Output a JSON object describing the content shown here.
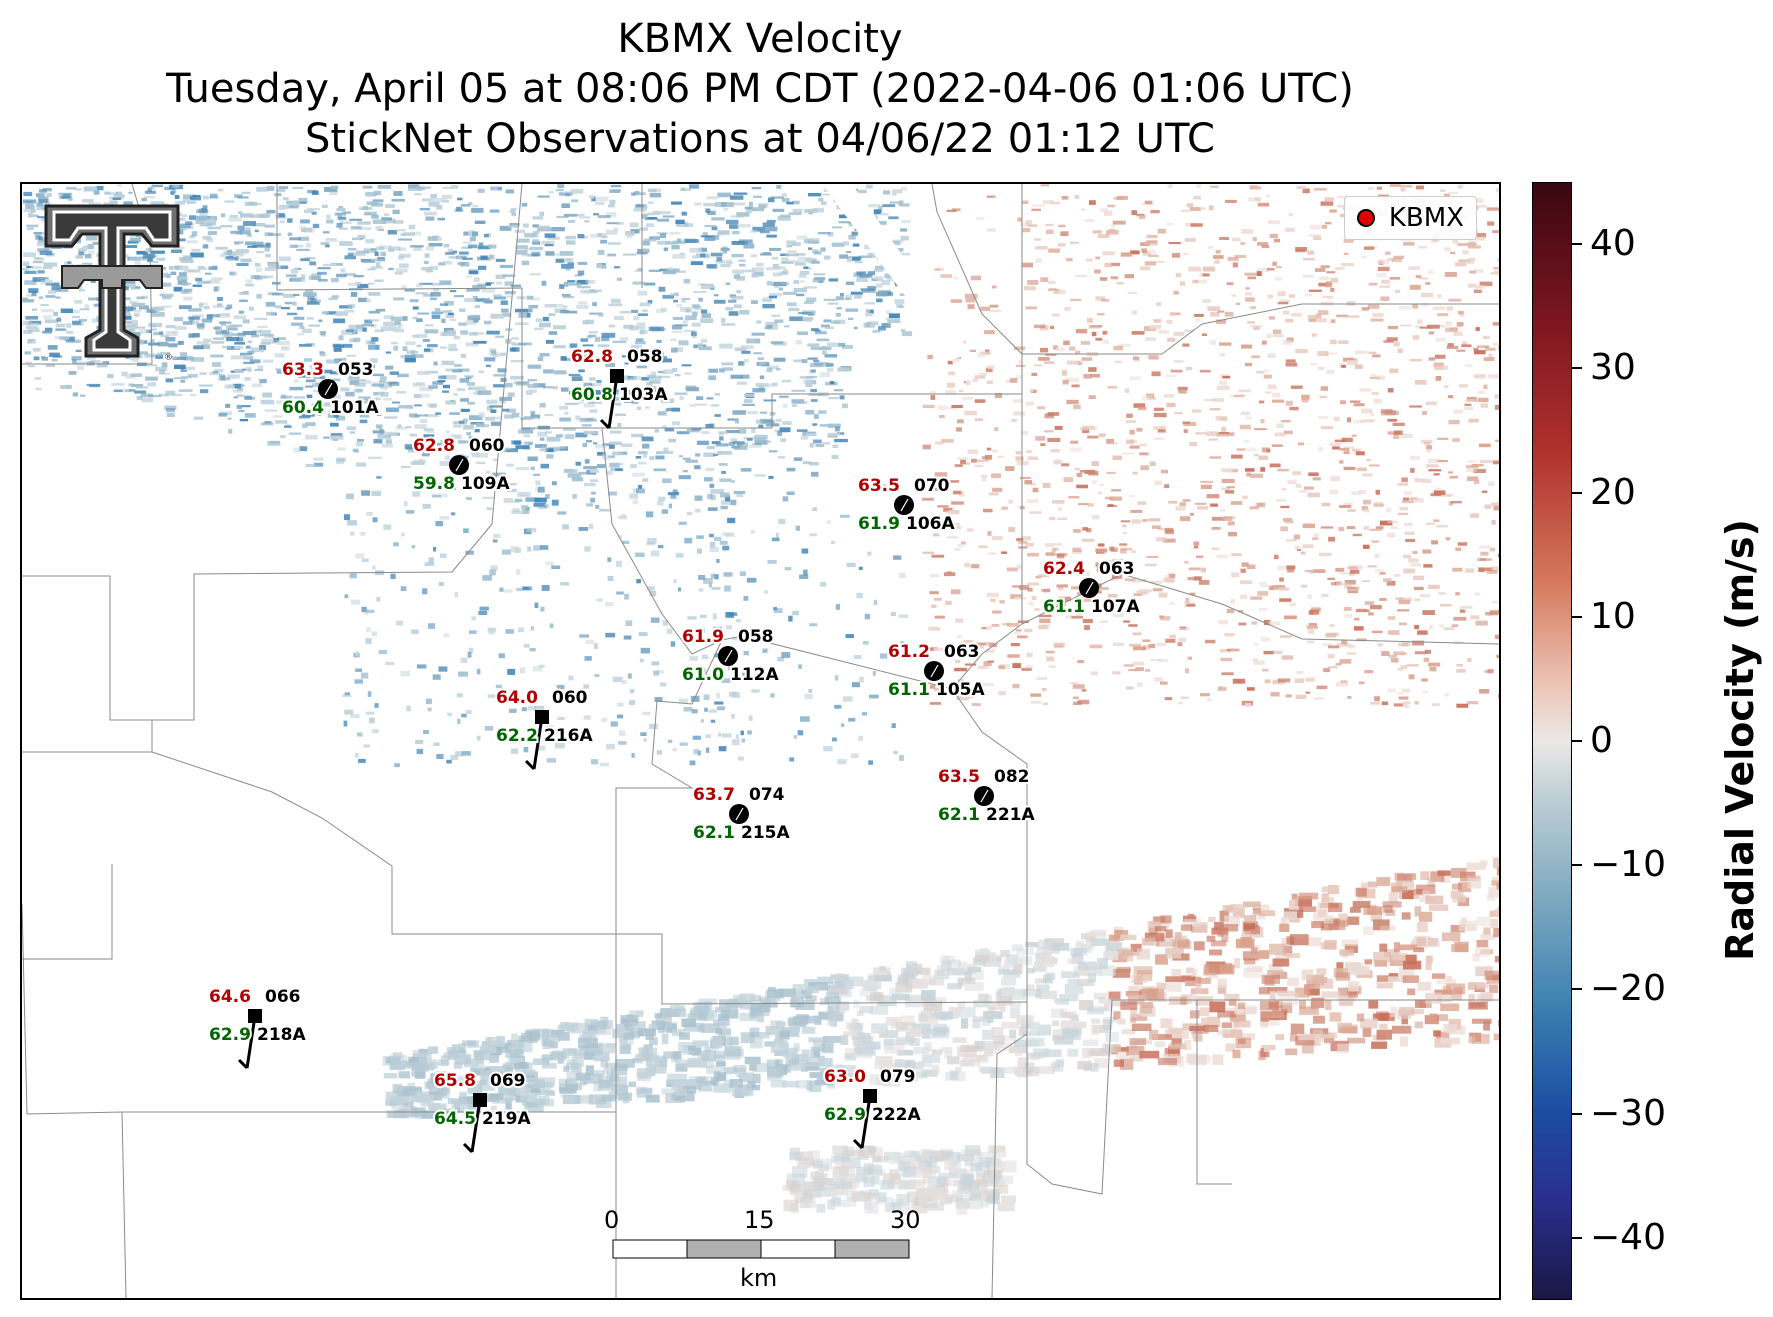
{
  "title": {
    "line1": "KBMX Velocity",
    "line2": "Tuesday, April 05 at 08:06 PM CDT (2022-04-06 01:06 UTC)",
    "line3": "StickNet Observations at 04/06/22 01:12 UTC"
  },
  "legend": {
    "label": "KBMX",
    "marker_color": "#e00000"
  },
  "logo": {
    "name": "texas-tech-double-t-logo"
  },
  "colorbar": {
    "label": "Radial Velocity (m/s)",
    "ticks": [
      "40",
      "30",
      "20",
      "10",
      "0",
      "−10",
      "−20",
      "−30",
      "−40"
    ],
    "range": [
      -45,
      45
    ]
  },
  "scalebar": {
    "labels": [
      "0",
      "15",
      "30"
    ],
    "unit": "km"
  },
  "colors": {
    "temperature": "#b00000",
    "dewpoint": "#006400",
    "id_text": "#000000"
  },
  "stations": [
    {
      "temp": "63.3",
      "dew": "60.4",
      "dir": "053",
      "id": "101A",
      "marker": "circle"
    },
    {
      "temp": "62.8",
      "dew": "59.8",
      "dir": "060",
      "id": "109A",
      "marker": "circle"
    },
    {
      "temp": "62.8",
      "dew": "60.8",
      "dir": "058",
      "id": "103A",
      "marker": "square"
    },
    {
      "temp": "63.5",
      "dew": "61.9",
      "dir": "070",
      "id": "106A",
      "marker": "circle"
    },
    {
      "temp": "62.4",
      "dew": "61.1",
      "dir": "063",
      "id": "107A",
      "marker": "circle"
    },
    {
      "temp": "61.9",
      "dew": "61.0",
      "dir": "058",
      "id": "112A",
      "marker": "circle"
    },
    {
      "temp": "61.2",
      "dew": "61.1",
      "dir": "063",
      "id": "105A",
      "marker": "circle"
    },
    {
      "temp": "64.0",
      "dew": "62.2",
      "dir": "060",
      "id": "216A",
      "marker": "square"
    },
    {
      "temp": "63.7",
      "dew": "62.1",
      "dir": "074",
      "id": "215A",
      "marker": "circle"
    },
    {
      "temp": "63.5",
      "dew": "62.1",
      "dir": "082",
      "id": "221A",
      "marker": "circle"
    },
    {
      "temp": "64.6",
      "dew": "62.9",
      "dir": "066",
      "id": "218A",
      "marker": "square"
    },
    {
      "temp": "65.8",
      "dew": "64.5",
      "dir": "069",
      "id": "219A",
      "marker": "square"
    },
    {
      "temp": "63.0",
      "dew": "62.9",
      "dir": "079",
      "id": "222A",
      "marker": "square"
    }
  ]
}
